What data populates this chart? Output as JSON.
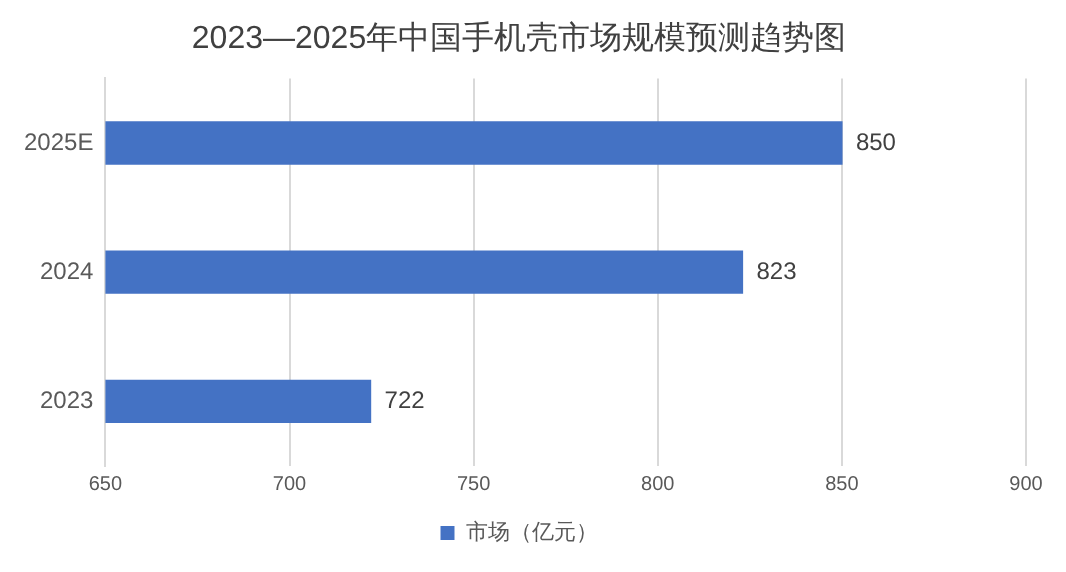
{
  "chart_data": {
    "type": "bar",
    "title": "2023—2025年中国手机壳市场规模预测趋势图",
    "orientation": "horizontal",
    "categories": [
      "2025E",
      "2024",
      "2023"
    ],
    "series": [
      {
        "name": "市场（亿元）",
        "color": "#4472c4",
        "values": [
          850,
          823,
          722
        ]
      }
    ],
    "xlim": [
      650,
      900
    ],
    "xticks": [
      650,
      700,
      750,
      800,
      850,
      900
    ],
    "grid": "x",
    "legend": "bottom",
    "data_labels": true
  }
}
